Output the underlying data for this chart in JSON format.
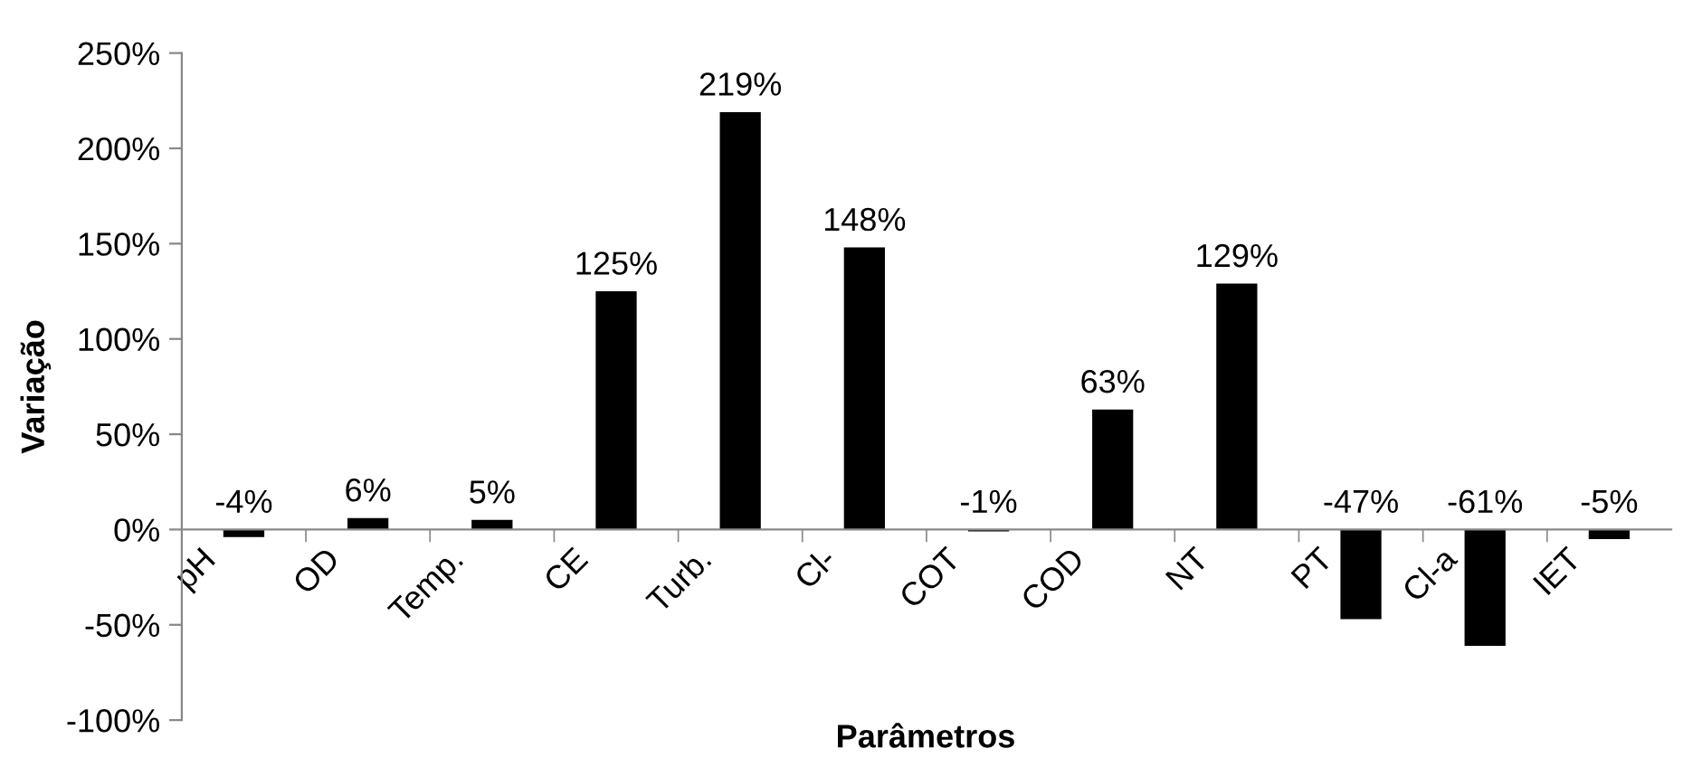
{
  "chart_data": {
    "type": "bar",
    "xlabel": "Parâmetros",
    "ylabel": "Variação",
    "categories": [
      "pH",
      "OD",
      "Temp.",
      "CE",
      "Turb.",
      "Cl-",
      "COT",
      "COD",
      "NT",
      "PT",
      "Cl-a",
      "IET"
    ],
    "values": [
      -4,
      6,
      5,
      125,
      219,
      148,
      -1,
      63,
      129,
      -47,
      -61,
      -5
    ],
    "value_labels": [
      "-4%",
      "6%",
      "5%",
      "125%",
      "219%",
      "148%",
      "-1%",
      "63%",
      "129%",
      "-47%",
      "-61%",
      "-5%"
    ],
    "color": "#000000",
    "ylim": [
      -100,
      250
    ],
    "yticks": [
      {
        "value": -100,
        "label": "-100%"
      },
      {
        "value": -50,
        "label": "-50%"
      },
      {
        "value": 0,
        "label": "0%"
      },
      {
        "value": 50,
        "label": "50%"
      },
      {
        "value": 100,
        "label": "100%"
      },
      {
        "value": 150,
        "label": "150%"
      },
      {
        "value": 200,
        "label": "200%"
      },
      {
        "value": 250,
        "label": "250%"
      }
    ],
    "grid": false
  }
}
